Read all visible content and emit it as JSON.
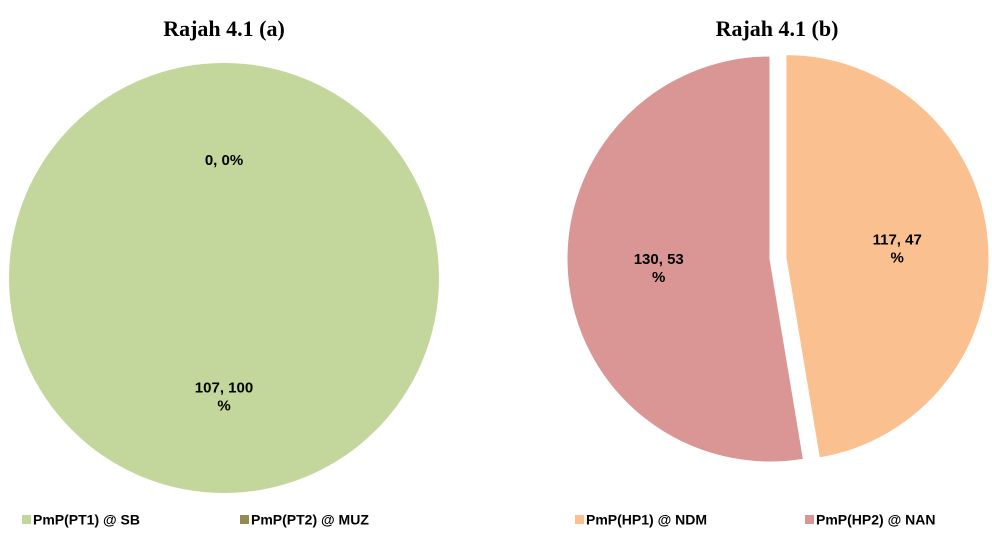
{
  "chart_data": [
    {
      "type": "pie",
      "title": "Rajah 4.1 (a)",
      "categories": [
        "PmP(PT1) @ SB",
        "PmP(PT2) @ MUZ"
      ],
      "values": [
        107,
        0
      ],
      "value_labels": [
        "107, 100%",
        "0, 0%"
      ],
      "colors": [
        "#c3d69b",
        "#948a54"
      ],
      "legend": "bottom"
    },
    {
      "type": "pie",
      "title": "Rajah 4.1 (b)",
      "categories": [
        "PmP(HP1) @ NDM",
        "PmP(HP2) @ NAN"
      ],
      "values": [
        117,
        130
      ],
      "value_labels": [
        "117, 47%",
        "130, 53%"
      ],
      "colors": [
        "#fac090",
        "#d99694"
      ],
      "legend": "bottom"
    }
  ]
}
